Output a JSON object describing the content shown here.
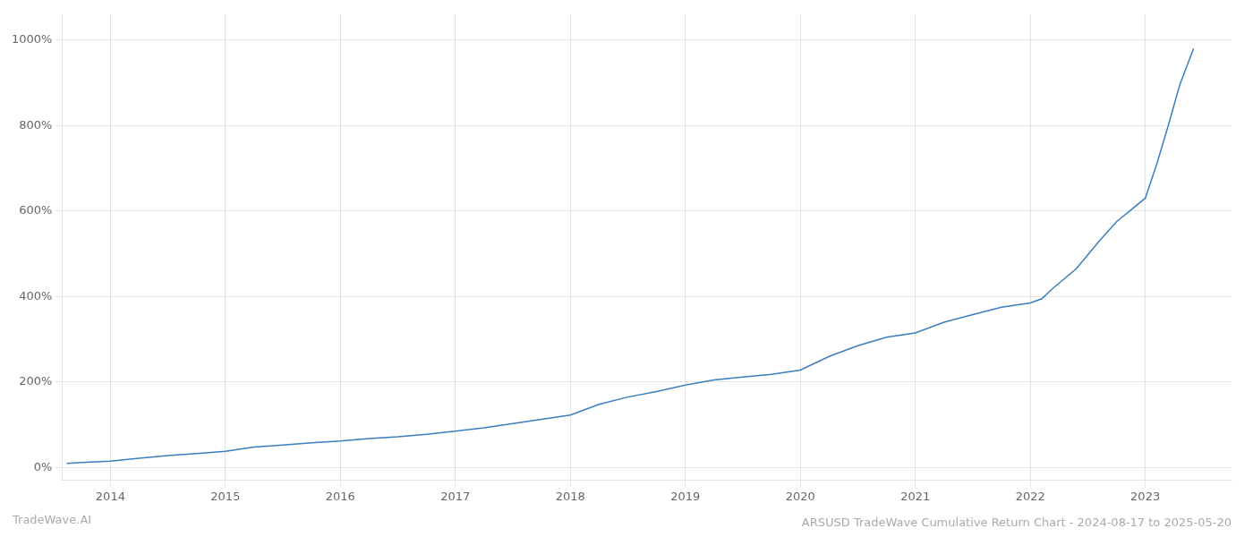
{
  "chart_data": {
    "type": "line",
    "title": "ARSUSD TradeWave Cumulative Return Chart - 2024-08-17 to 2025-05-20",
    "annotations": [
      "TradeWave.AI"
    ],
    "x": [
      2013.62,
      2013.75,
      2014.0,
      2014.25,
      2014.5,
      2014.75,
      2015.0,
      2015.25,
      2015.5,
      2015.75,
      2016.0,
      2016.25,
      2016.5,
      2016.75,
      2017.0,
      2017.25,
      2017.5,
      2017.75,
      2018.0,
      2018.25,
      2018.5,
      2018.75,
      2019.0,
      2019.25,
      2019.5,
      2019.75,
      2020.0,
      2020.25,
      2020.5,
      2020.75,
      2021.0,
      2021.25,
      2021.5,
      2021.75,
      2022.0,
      2022.1,
      2022.2,
      2022.4,
      2022.6,
      2022.75,
      2023.0,
      2023.1,
      2023.2,
      2023.3,
      2023.42
    ],
    "values": [
      10,
      12,
      15,
      22,
      28,
      33,
      38,
      48,
      53,
      58,
      62,
      68,
      72,
      78,
      85,
      93,
      103,
      113,
      123,
      148,
      165,
      178,
      193,
      205,
      212,
      218,
      228,
      260,
      285,
      305,
      315,
      340,
      358,
      375,
      385,
      395,
      420,
      465,
      530,
      575,
      630,
      710,
      800,
      895,
      980
    ],
    "color": "#3a7ebf",
    "xlim": [
      2013.58,
      2023.75
    ],
    "ylim": [
      -30,
      1060
    ],
    "xticks": [
      2014,
      2015,
      2016,
      2017,
      2018,
      2019,
      2020,
      2021,
      2022,
      2023
    ],
    "yticks": [
      {
        "value": 0,
        "label": "0%"
      },
      {
        "value": 200,
        "label": "200%"
      },
      {
        "value": 400,
        "label": "400%"
      },
      {
        "value": 600,
        "label": "600%"
      },
      {
        "value": 800,
        "label": "800%"
      },
      {
        "value": 1000,
        "label": "1000%"
      }
    ],
    "grid": true
  }
}
